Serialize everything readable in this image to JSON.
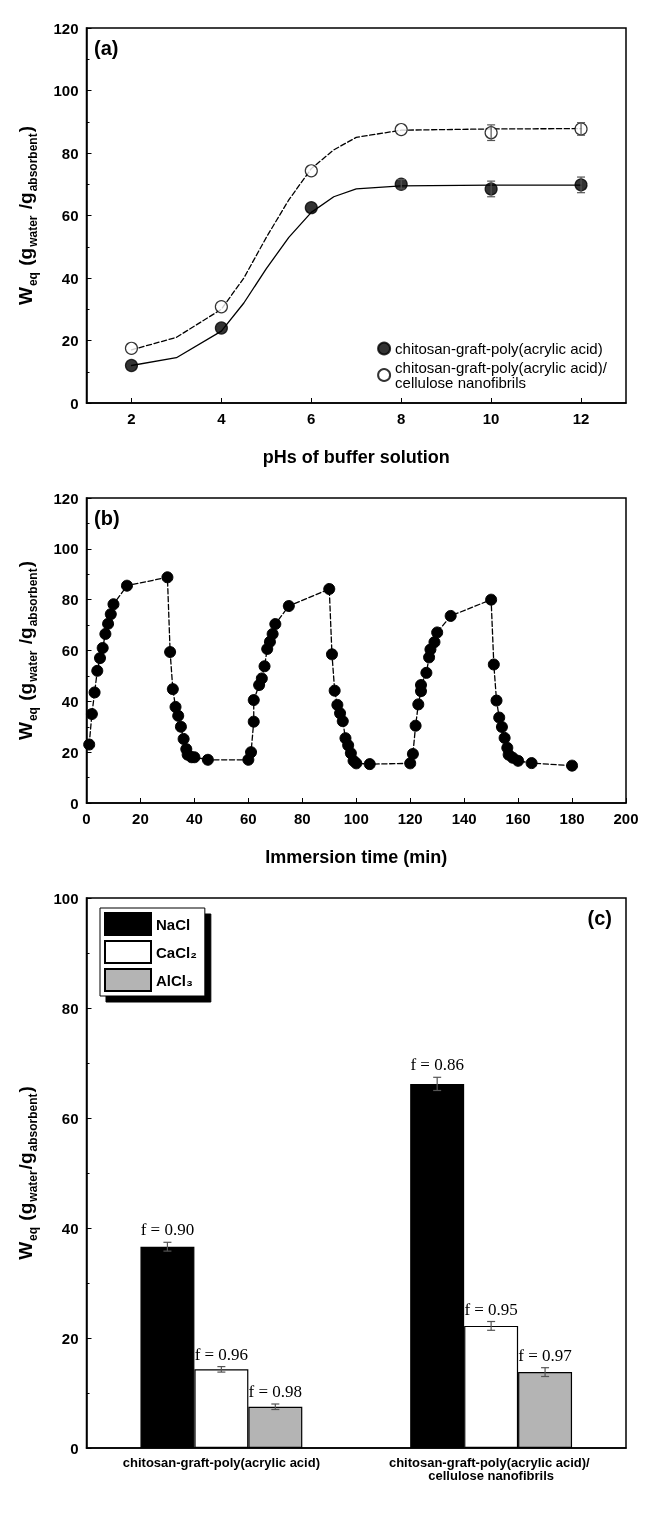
{
  "chart_data": [
    {
      "type": "scatter",
      "annotations": [
        "(a)"
      ],
      "xlabel": "pHs of buffer solution",
      "ylabel": "W$_{eq}$ (g$_{water}$ /g$_{absorbent}$)",
      "xlim": [
        1,
        13
      ],
      "xticks": [
        2,
        4,
        6,
        8,
        10,
        12
      ],
      "ylim": [
        0,
        120
      ],
      "yticks": [
        0,
        20,
        40,
        60,
        80,
        100,
        120
      ],
      "grid": false,
      "legend": "bottom right",
      "marker": "circle",
      "series": [
        {
          "name": "chitosan-graft-poly(acrylic acid)",
          "type": "scatter",
          "color": "#000000",
          "x": [
            2,
            4,
            6,
            8,
            10,
            12
          ],
          "values": [
            12,
            24,
            62.5,
            70,
            68.5,
            69.8
          ],
          "errors": [
            null,
            null,
            null,
            1.5,
            2.5,
            2.5
          ]
        },
        {
          "name": "chitosan-graft-poly(acrylic acid)/ cellulose nanofibrils",
          "type": "scatter",
          "color": "#ffffff",
          "x": [
            2,
            4,
            6,
            8,
            10,
            12
          ],
          "values": [
            17.5,
            30.8,
            74.3,
            87.5,
            86.5,
            87.7
          ],
          "errors": [
            null,
            null,
            null,
            null,
            2.5,
            2
          ]
        },
        {
          "type": "line",
          "color": "#000000",
          "line_style": "solid",
          "marker": "none",
          "x": [
            2,
            3,
            4,
            4.5,
            5,
            5.5,
            6,
            6.5,
            7,
            8,
            10,
            12
          ],
          "values": [
            12,
            14.5,
            23,
            32,
            43,
            53,
            61,
            66,
            68.5,
            69.5,
            69.7,
            69.7
          ]
        },
        {
          "type": "line",
          "color": "#000000",
          "line_style": "dashed",
          "marker": "none",
          "x": [
            2,
            3,
            4,
            4.5,
            5,
            5.5,
            6,
            6.5,
            7,
            8,
            10,
            12
          ],
          "values": [
            17,
            21,
            30,
            40,
            53,
            65,
            75,
            81,
            85,
            87.3,
            87.7,
            87.8
          ]
        }
      ]
    },
    {
      "type": "line",
      "annotations": [
        "(b)"
      ],
      "xlabel": "Immersion time (min)",
      "ylabel": "W$_{eq}$ (g$_{water}$ /g$_{absorbent}$)",
      "xlim": [
        0,
        200
      ],
      "xticks": [
        0,
        20,
        40,
        60,
        80,
        100,
        120,
        140,
        160,
        180,
        200
      ],
      "ylim": [
        0,
        120
      ],
      "yticks": [
        0,
        20,
        40,
        60,
        80,
        100,
        120
      ],
      "grid": false,
      "marker": "circle",
      "line_style": "dashed",
      "series": [
        {
          "color": "#000000",
          "x": [
            1,
            2,
            3,
            4,
            5,
            6,
            7,
            8,
            9,
            10,
            15,
            30,
            31,
            32,
            33,
            34,
            35,
            36,
            37,
            37.5,
            39,
            40,
            45,
            60,
            61,
            62,
            62,
            64,
            65,
            66,
            67,
            68,
            69,
            70,
            75,
            90,
            91,
            92,
            93,
            94,
            95,
            96,
            97,
            98,
            99,
            100,
            105,
            120,
            121,
            122,
            123,
            124,
            124,
            126,
            127,
            127.5,
            129,
            130,
            135,
            150,
            151,
            152,
            153,
            154,
            155,
            156,
            156.5,
            158,
            160,
            165,
            180
          ],
          "values": [
            23,
            35,
            43.5,
            52,
            57,
            61,
            66.5,
            70.5,
            74.3,
            78.2,
            85.5,
            88.8,
            59.4,
            44.8,
            37.8,
            34.3,
            30,
            25.2,
            21.2,
            19,
            18,
            18,
            17,
            17,
            20,
            32,
            40.5,
            46.4,
            49,
            53.8,
            60.6,
            63.4,
            66.5,
            70.4,
            77.5,
            84.2,
            58.5,
            44.2,
            38.6,
            35.3,
            32.2,
            25.5,
            22.7,
            19.6,
            16.6,
            15.6,
            15.3,
            15.6,
            19.3,
            30.4,
            38.8,
            44,
            46.4,
            51.2,
            57.3,
            60.4,
            63.3,
            67.1,
            73.6,
            80,
            54.5,
            40.3,
            33.6,
            29.9,
            25.6,
            21.7,
            19,
            17.8,
            16.6,
            15.7,
            14.7
          ]
        }
      ]
    },
    {
      "type": "bar",
      "annotations": [
        "(c)",
        "f = 0.90",
        "f = 0.86",
        "f = 0.96",
        "f = 0.95",
        "f = 0.98",
        "f = 0.97"
      ],
      "ylabel": "W$_{eq}$ (g$_{water}$/g$_{absorbent}$)",
      "categories": [
        "chitosan-graft-poly(acrylic acid)",
        "chitosan-graft-poly(acrylic acid)/ cellulose nanofibrils"
      ],
      "ylim": [
        0,
        100
      ],
      "yticks": [
        0,
        20,
        40,
        60,
        80,
        100
      ],
      "grid": false,
      "legend": "top left",
      "series": [
        {
          "name": "NaCl",
          "color": "#000000",
          "values": [
            36.6,
            66.2
          ],
          "errors": [
            0.8,
            1.2
          ]
        },
        {
          "name": "CaCl₂",
          "color": "#ffffff",
          "values": [
            14.3,
            22.2
          ],
          "errors": [
            0.5,
            0.8
          ]
        },
        {
          "name": "AlCl₃",
          "color": "#b4b4b4",
          "values": [
            7.5,
            13.8
          ],
          "errors": [
            0.5,
            0.8
          ]
        }
      ]
    }
  ]
}
